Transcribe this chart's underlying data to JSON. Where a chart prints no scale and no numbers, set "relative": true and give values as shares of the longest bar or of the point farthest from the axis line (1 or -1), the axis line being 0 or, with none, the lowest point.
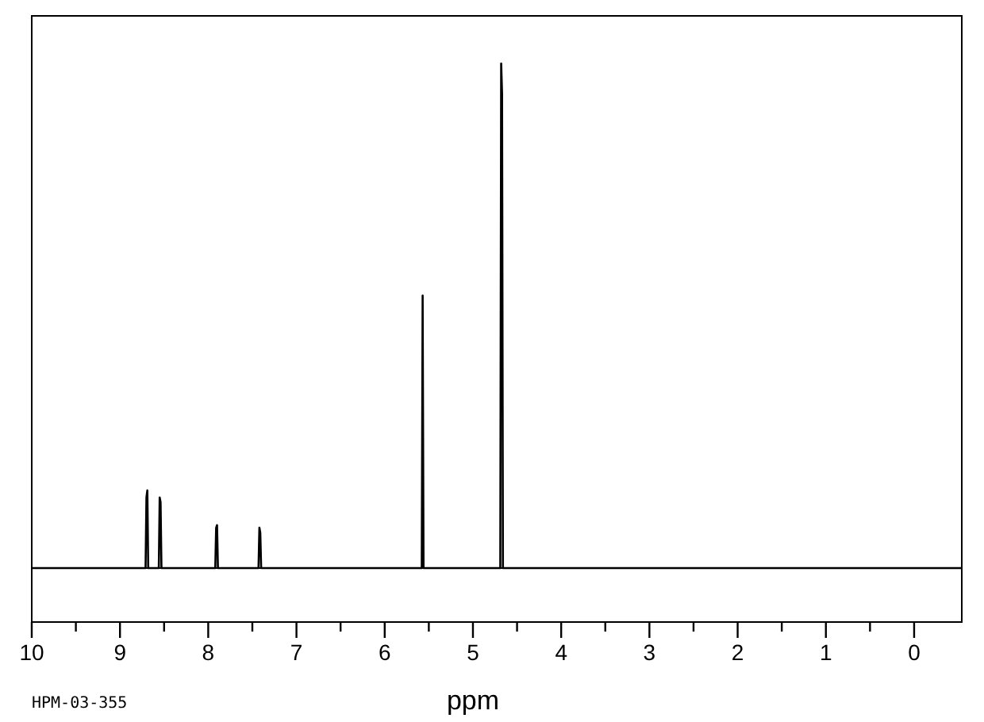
{
  "chart_data": {
    "type": "line",
    "relative": true,
    "xlabel": "ppm",
    "annotations": [
      "HPM-03-355"
    ],
    "xlim": [
      10,
      -0.54
    ],
    "xticks": [
      10,
      9,
      8,
      7,
      6,
      5,
      4,
      3,
      2,
      1,
      0
    ],
    "tick_labels": "x",
    "grid": false,
    "marker": "none",
    "line_style": "solid",
    "series": [
      {
        "color": "#000000",
        "x": [
          10,
          8.71,
          8.7,
          8.69,
          8.68,
          8.56,
          8.55,
          8.54,
          8.53,
          7.92,
          7.91,
          7.9,
          7.89,
          7.43,
          7.42,
          7.41,
          7.4,
          5.58,
          5.57,
          5.56,
          4.69,
          4.68,
          4.67,
          4.66,
          -0.54
        ],
        "values": [
          0,
          0,
          0.14,
          0.154,
          0,
          0,
          0.14,
          0.13,
          0,
          0,
          0.08,
          0.085,
          0,
          0,
          0.08,
          0.07,
          0,
          0,
          0.54,
          0,
          0,
          1.0,
          0.94,
          0,
          0
        ]
      }
    ]
  }
}
